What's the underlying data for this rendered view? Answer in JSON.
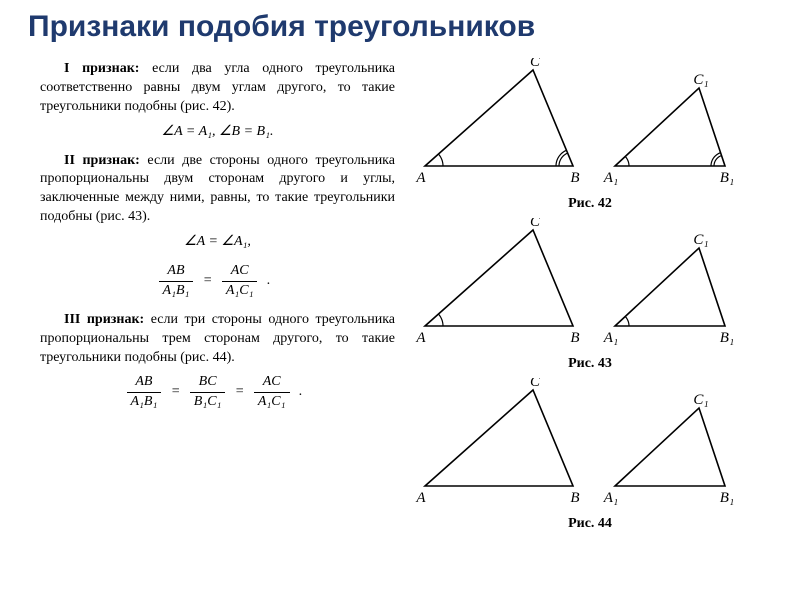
{
  "title": "Признаки подобия треугольников",
  "title_color": "#1f3a6e",
  "text_color": "#000000",
  "background_color": "#ffffff",
  "criteria": {
    "c1": {
      "lead": "I признак:",
      "body": " если два угла одного треугольника соответственно равны двум углам другого, то такие треугольники подобны (рис. 42).",
      "formula": "∠A = A₁,   ∠B = B₁."
    },
    "c2": {
      "lead": "II признак:",
      "body": " если две стороны одного треугольника пропорциональны двум сторонам другого и углы, заключенные между ними, равны, то такие треугольники подобны (рис. 43).",
      "formula_line1": "∠A = ∠A₁,",
      "frac1_num": "AB",
      "frac1_den": "A₁B₁",
      "frac2_num": "AC",
      "frac2_den": "A₁C₁"
    },
    "c3": {
      "lead": "III признак:",
      "body": " если три стороны одного треугольника пропорциональны трем сторонам другого, то такие треугольники подобны (рис. 44).",
      "frac1_num": "AB",
      "frac1_den": "A₁B₁",
      "frac2_num": "BC",
      "frac2_den": "B₁C₁",
      "frac3_num": "AC",
      "frac3_den": "A₁C₁"
    }
  },
  "figures": {
    "f42": {
      "caption": "Рис. 42",
      "big": {
        "A": [
          10,
          108
        ],
        "B": [
          158,
          108
        ],
        "C": [
          118,
          12
        ],
        "arcA": true,
        "arcB": true
      },
      "small": {
        "A": [
          0,
          108
        ],
        "B": [
          110,
          108
        ],
        "C": [
          84,
          30
        ],
        "arcA": true,
        "arcB": true
      },
      "labels": {
        "A": "A",
        "B": "B",
        "C": "C",
        "A1": "A₁",
        "B1": "B₁",
        "C1": "C₁"
      }
    },
    "f43": {
      "caption": "Рис. 43",
      "big": {
        "A": [
          10,
          108
        ],
        "B": [
          158,
          108
        ],
        "C": [
          118,
          12
        ],
        "arcA": true,
        "arcB": false
      },
      "small": {
        "A": [
          0,
          108
        ],
        "B": [
          110,
          108
        ],
        "C": [
          84,
          30
        ],
        "arcA": true,
        "arcB": false
      },
      "labels": {
        "A": "A",
        "B": "B",
        "C": "C",
        "A1": "A₁",
        "B1": "B₁",
        "C1": "C₁"
      }
    },
    "f44": {
      "caption": "Рис. 44",
      "big": {
        "A": [
          10,
          108
        ],
        "B": [
          158,
          108
        ],
        "C": [
          118,
          12
        ],
        "arcA": false,
        "arcB": false
      },
      "small": {
        "A": [
          0,
          108
        ],
        "B": [
          110,
          108
        ],
        "C": [
          84,
          30
        ],
        "arcA": false,
        "arcB": false
      },
      "labels": {
        "A": "A",
        "B": "B",
        "C": "C",
        "A1": "A₁",
        "B1": "B₁",
        "C1": "C₁"
      }
    }
  },
  "triangle_style": {
    "stroke": "#000000",
    "stroke_width": 1.6,
    "fill": "none",
    "arc_radius_big_A": 18,
    "arc_radius_big_B": 14,
    "arc_radius_small_A": 14,
    "arc_radius_small_B": 11,
    "arc_double_gap": 3
  }
}
